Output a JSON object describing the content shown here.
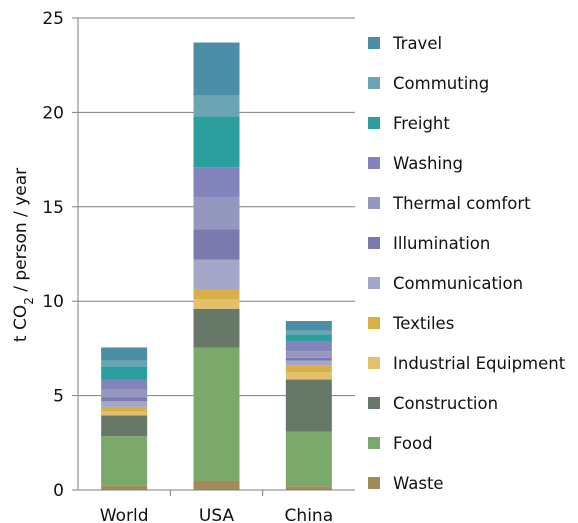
{
  "chart_data": {
    "type": "bar",
    "stacked": true,
    "categories": [
      "World",
      "USA",
      "China"
    ],
    "ylabel_prefix": "t CO",
    "ylabel_subscript": "2",
    "ylabel_suffix": " / person / year",
    "ylim": [
      0,
      25
    ],
    "yticks": [
      "0",
      "5",
      "10",
      "15",
      "20",
      "25"
    ],
    "grid": true,
    "legend_position": "right",
    "series": [
      {
        "name": "Waste",
        "color": "#a08c5a",
        "values": [
          0.25,
          0.5,
          0.2
        ]
      },
      {
        "name": "Food",
        "color": "#7ba86b",
        "values": [
          2.6,
          7.05,
          2.9
        ]
      },
      {
        "name": "Construction",
        "color": "#687868",
        "values": [
          1.1,
          2.05,
          2.75
        ]
      },
      {
        "name": "Industrial Equipment",
        "color": "#e2c06c",
        "values": [
          0.2,
          0.5,
          0.4
        ]
      },
      {
        "name": "Textiles",
        "color": "#d8b048",
        "values": [
          0.25,
          0.5,
          0.35
        ]
      },
      {
        "name": "Communication",
        "color": "#a4a7c8",
        "values": [
          0.3,
          1.6,
          0.25
        ]
      },
      {
        "name": "Illumination",
        "color": "#7a7aae",
        "values": [
          0.2,
          1.6,
          0.15
        ]
      },
      {
        "name": "Thermal comfort",
        "color": "#9497be",
        "values": [
          0.45,
          1.7,
          0.35
        ]
      },
      {
        "name": "Washing",
        "color": "#8484bd",
        "values": [
          0.5,
          1.6,
          0.5
        ]
      },
      {
        "name": "Freight",
        "color": "#2d9e9e",
        "values": [
          0.7,
          2.7,
          0.4
        ]
      },
      {
        "name": "Commuting",
        "color": "#6ca4b4",
        "values": [
          0.3,
          1.1,
          0.2
        ]
      },
      {
        "name": "Travel",
        "color": "#4b8ea6",
        "values": [
          0.7,
          2.8,
          0.5
        ]
      }
    ]
  }
}
